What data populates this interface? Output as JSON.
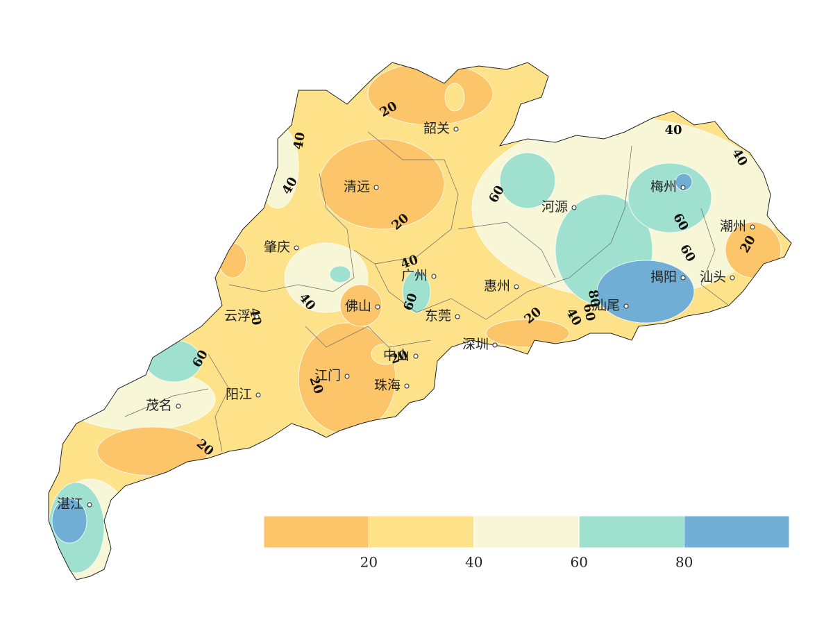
{
  "cities": [
    "韶关",
    "清远",
    "肇庆",
    "广州",
    "佛山",
    "云浮",
    "东莞",
    "惠州",
    "河源",
    "梅州",
    "潮州",
    "揭阳",
    "汕头",
    "汕尾",
    "深圳",
    "中山",
    "江门",
    "珠海",
    "阳江",
    "茂名",
    "湛江"
  ],
  "contour_labels": [
    20,
    40,
    40,
    20,
    60,
    40,
    40,
    40,
    60,
    60,
    20,
    40,
    40,
    60,
    80,
    60,
    40,
    20,
    20,
    20,
    60,
    20
  ],
  "colorbar": {
    "range": [
      0,
      100
    ],
    "ticks": [
      20,
      40,
      60,
      80
    ],
    "colors": [
      "#fdc56a",
      "#fde28a",
      "#f7f6d6",
      "#9fe0cf",
      "#70aed6"
    ]
  }
}
